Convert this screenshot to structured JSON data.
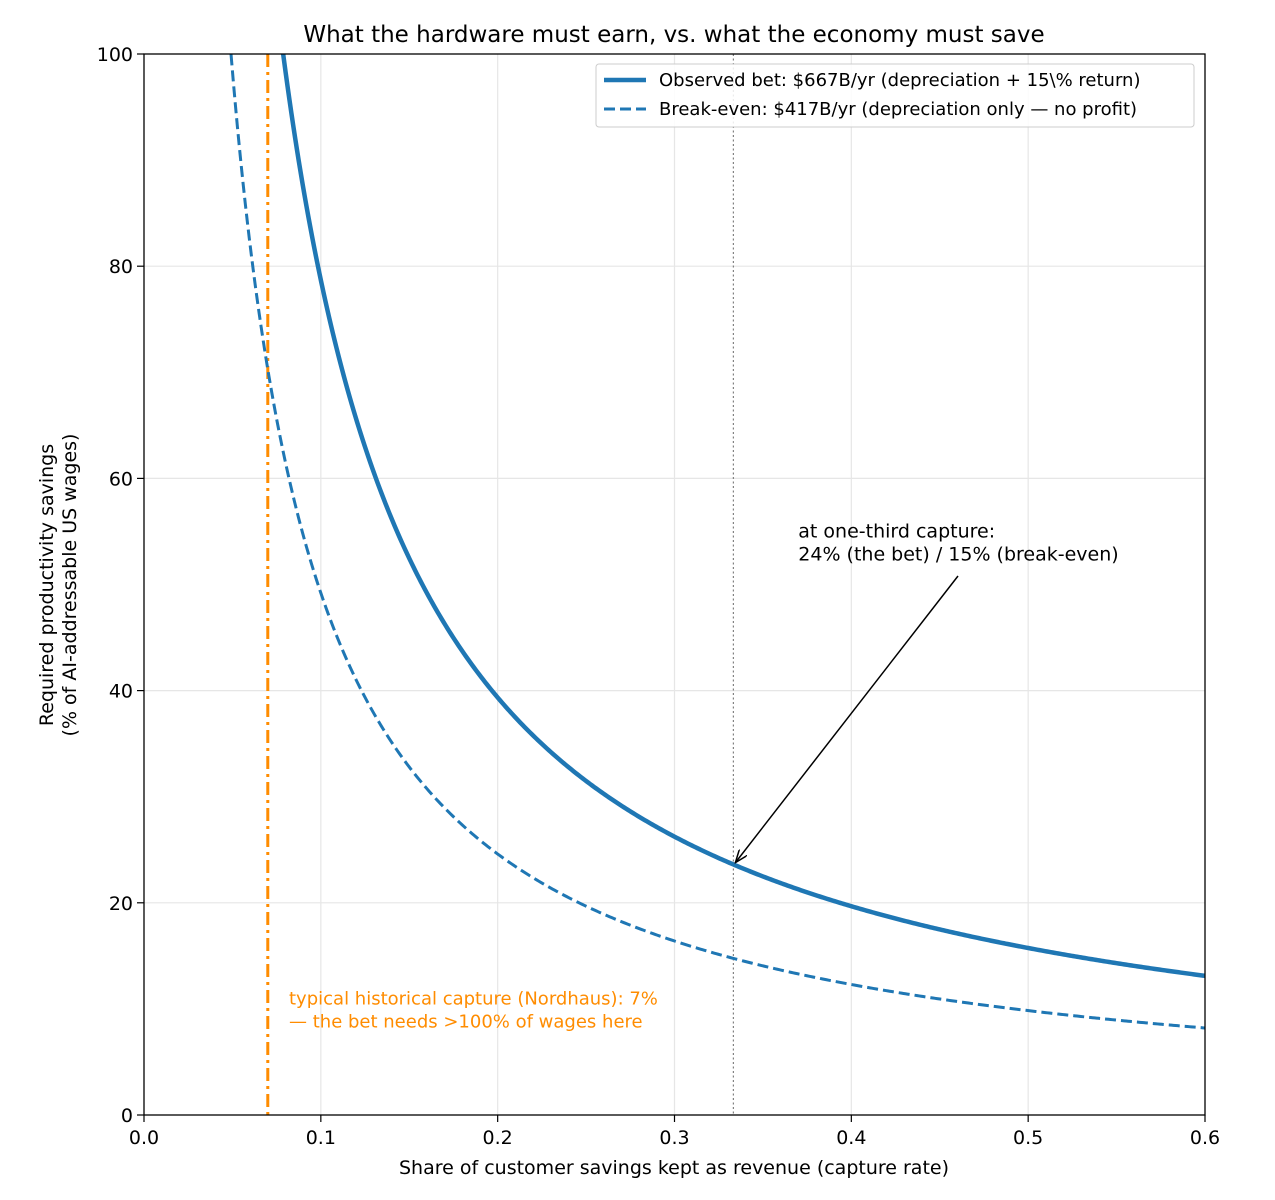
{
  "chart_data": {
    "type": "line",
    "title": "What the hardware must earn, vs. what the economy must save",
    "xlabel": "Share of customer savings kept as revenue (capture rate)",
    "ylabel_line1": "Required productivity savings",
    "ylabel_line2": "(% of AI-addressable US wages)",
    "xlim": [
      0.0,
      0.6
    ],
    "ylim": [
      0,
      100
    ],
    "x_ticks": [
      0.0,
      0.1,
      0.2,
      0.3,
      0.4,
      0.5,
      0.6
    ],
    "x_tick_labels": [
      "0.0",
      "0.1",
      "0.2",
      "0.3",
      "0.4",
      "0.5",
      "0.6"
    ],
    "y_ticks": [
      0,
      20,
      40,
      60,
      80,
      100
    ],
    "y_tick_labels": [
      "0",
      "20",
      "40",
      "60",
      "80",
      "100"
    ],
    "grid": true,
    "legend_position": "top-right",
    "series": [
      {
        "name": "Observed bet: $667B/yr (depreciation + 15\\% return)",
        "style": "solid",
        "color": "#1f77b4",
        "formula": "y = k / x",
        "k": 7.87,
        "points": [
          [
            0.08,
            98.4
          ],
          [
            0.1,
            78.7
          ],
          [
            0.15,
            52.5
          ],
          [
            0.2,
            39.4
          ],
          [
            0.25,
            31.5
          ],
          [
            0.3,
            26.2
          ],
          [
            0.3333,
            23.6
          ],
          [
            0.4,
            19.7
          ],
          [
            0.5,
            15.7
          ],
          [
            0.6,
            13.1
          ]
        ]
      },
      {
        "name": "Break-even: $417B/yr (depreciation only — no profit)",
        "style": "dashed",
        "color": "#1f77b4",
        "formula": "y = k / x",
        "k": 4.92,
        "points": [
          [
            0.05,
            98.4
          ],
          [
            0.07,
            70.3
          ],
          [
            0.1,
            49.2
          ],
          [
            0.15,
            32.8
          ],
          [
            0.2,
            24.6
          ],
          [
            0.3,
            16.4
          ],
          [
            0.3333,
            14.8
          ],
          [
            0.4,
            12.3
          ],
          [
            0.5,
            9.8
          ],
          [
            0.6,
            8.2
          ]
        ]
      }
    ],
    "vlines": [
      {
        "x": 0.07,
        "style": "dashdot",
        "color": "#ff8c00"
      },
      {
        "x": 0.3333,
        "style": "dotted",
        "color": "#808080"
      }
    ],
    "annotations": {
      "one_third_line1": "at one-third capture:",
      "one_third_line2": "24% (the bet)  /  15% (break-even)",
      "one_third_point": [
        0.3333,
        23.6
      ],
      "one_third_text_pos": [
        0.37,
        53
      ],
      "nordhaus_line1": "typical historical capture (Nordhaus): 7%",
      "nordhaus_line2": "— the bet needs >100% of wages here",
      "nordhaus_text_pos": [
        0.082,
        9
      ],
      "nordhaus_color": "#ff8c00"
    }
  }
}
